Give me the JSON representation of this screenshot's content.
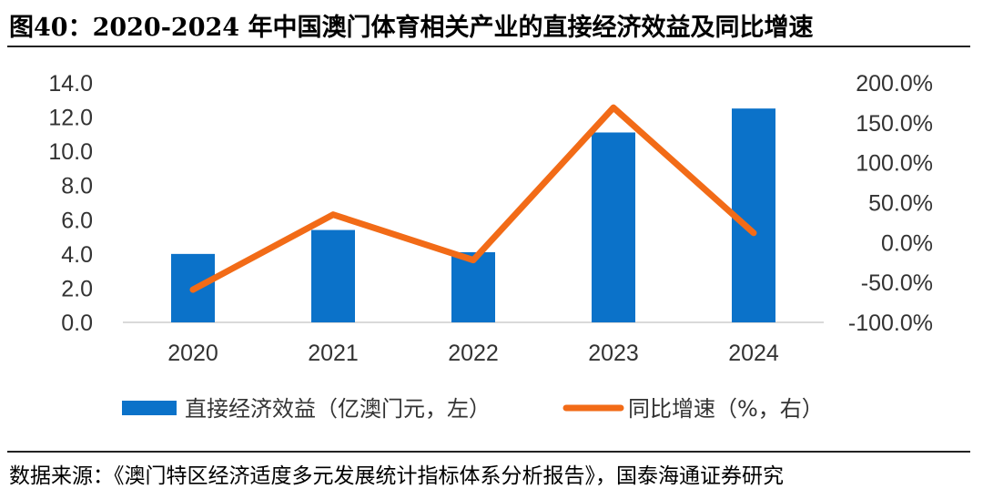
{
  "title": "图40：2020-2024 年中国澳门体育相关产业的直接经济效益及同比增速",
  "source": "数据来源：《澳门特区经济适度多元发展统计指标体系分析报告》，国泰海通证券研究",
  "colors": {
    "bar": "#0B72C9",
    "line": "#F26B17",
    "axis": "#d9d9d9",
    "text": "#333333"
  },
  "chart_data": {
    "type": "bar",
    "categories": [
      "2020",
      "2021",
      "2022",
      "2023",
      "2024"
    ],
    "series": [
      {
        "name": "直接经济效益（亿澳门元，左）",
        "type": "bar",
        "axis": "left",
        "values": [
          4.0,
          5.4,
          4.1,
          11.1,
          12.5
        ]
      },
      {
        "name": "同比增速（%，右）",
        "type": "line",
        "axis": "right",
        "values": [
          -59.0,
          35.0,
          -22.0,
          169.0,
          12.0
        ]
      }
    ],
    "y_left": {
      "ylim": [
        0,
        14
      ],
      "ticks": [
        "0.0",
        "2.0",
        "4.0",
        "6.0",
        "8.0",
        "10.0",
        "12.0",
        "14.0"
      ]
    },
    "y_right": {
      "ylim": [
        -100,
        200
      ],
      "ticks": [
        "-100.0%",
        "-50.0%",
        "0.0%",
        "50.0%",
        "100.0%",
        "150.0%",
        "200.0%"
      ]
    },
    "grid": false,
    "legend_position": "bottom"
  }
}
